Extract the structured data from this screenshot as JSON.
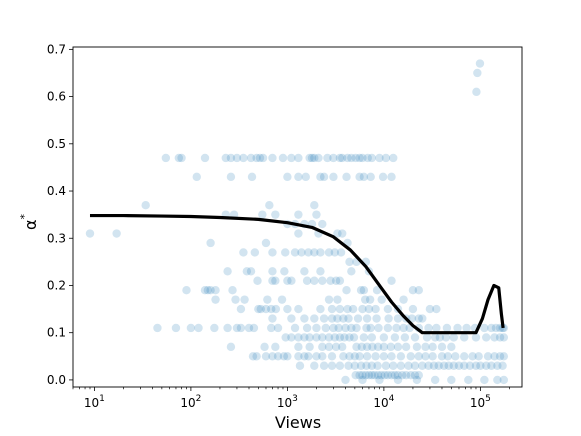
{
  "chart_data": {
    "type": "scatter",
    "xlabel": "Views",
    "ylabel": "α",
    "ylabel_superscript": "*",
    "x_scale": "log",
    "xlim": [
      6,
      270000
    ],
    "ylim": [
      -0.015,
      0.705
    ],
    "x_ticks": [
      {
        "value": 10,
        "base": "10",
        "exp": "1"
      },
      {
        "value": 100,
        "base": "10",
        "exp": "2"
      },
      {
        "value": 1000,
        "base": "10",
        "exp": "3"
      },
      {
        "value": 10000,
        "base": "10",
        "exp": "4"
      },
      {
        "value": 100000,
        "base": "10",
        "exp": "5"
      }
    ],
    "y_ticks": [
      {
        "value": 0.0,
        "label": "0.0"
      },
      {
        "value": 0.1,
        "label": "0.1"
      },
      {
        "value": 0.2,
        "label": "0.2"
      },
      {
        "value": 0.3,
        "label": "0.3"
      },
      {
        "value": 0.4,
        "label": "0.4"
      },
      {
        "value": 0.5,
        "label": "0.5"
      },
      {
        "value": 0.6,
        "label": "0.6"
      },
      {
        "value": 0.7,
        "label": "0.7"
      }
    ],
    "grid": false,
    "legend": "none",
    "colors": {
      "points": "#1f77b4",
      "line": "#000000"
    },
    "points_opacity": 0.2,
    "points": [
      [
        9,
        0.31
      ],
      [
        17,
        0.31
      ],
      [
        34,
        0.37
      ],
      [
        55,
        0.47
      ],
      [
        75,
        0.47
      ],
      [
        80,
        0.47
      ],
      [
        115,
        0.43
      ],
      [
        140,
        0.47
      ],
      [
        230,
        0.47
      ],
      [
        260,
        0.47
      ],
      [
        300,
        0.47
      ],
      [
        350,
        0.47
      ],
      [
        420,
        0.47
      ],
      [
        480,
        0.47
      ],
      [
        520,
        0.47
      ],
      [
        560,
        0.47
      ],
      [
        700,
        0.47
      ],
      [
        900,
        0.47
      ],
      [
        1100,
        0.47
      ],
      [
        1300,
        0.47
      ],
      [
        1700,
        0.47
      ],
      [
        1800,
        0.47
      ],
      [
        1900,
        0.47
      ],
      [
        2100,
        0.47
      ],
      [
        2600,
        0.47
      ],
      [
        3000,
        0.47
      ],
      [
        3500,
        0.47
      ],
      [
        3700,
        0.47
      ],
      [
        4200,
        0.47
      ],
      [
        4600,
        0.47
      ],
      [
        5100,
        0.47
      ],
      [
        5600,
        0.47
      ],
      [
        6000,
        0.47
      ],
      [
        6800,
        0.47
      ],
      [
        7500,
        0.47
      ],
      [
        9000,
        0.47
      ],
      [
        10500,
        0.47
      ],
      [
        12500,
        0.47
      ],
      [
        260,
        0.43
      ],
      [
        430,
        0.43
      ],
      [
        1000,
        0.43
      ],
      [
        1300,
        0.43
      ],
      [
        1550,
        0.43
      ],
      [
        2200,
        0.43
      ],
      [
        2400,
        0.43
      ],
      [
        3000,
        0.43
      ],
      [
        4100,
        0.43
      ],
      [
        5600,
        0.43
      ],
      [
        6200,
        0.43
      ],
      [
        7300,
        0.43
      ],
      [
        9800,
        0.43
      ],
      [
        12000,
        0.43
      ],
      [
        650,
        0.37
      ],
      [
        1900,
        0.37
      ],
      [
        230,
        0.35
      ],
      [
        280,
        0.35
      ],
      [
        550,
        0.35
      ],
      [
        750,
        0.35
      ],
      [
        1300,
        0.35
      ],
      [
        2000,
        0.35
      ],
      [
        1000,
        0.33
      ],
      [
        1200,
        0.33
      ],
      [
        1500,
        0.33
      ],
      [
        1800,
        0.33
      ],
      [
        2300,
        0.33
      ],
      [
        160,
        0.29
      ],
      [
        600,
        0.29
      ],
      [
        1300,
        0.31
      ],
      [
        2100,
        0.31
      ],
      [
        3300,
        0.31
      ],
      [
        3700,
        0.31
      ],
      [
        4200,
        0.29
      ],
      [
        350,
        0.27
      ],
      [
        460,
        0.27
      ],
      [
        700,
        0.27
      ],
      [
        950,
        0.27
      ],
      [
        1200,
        0.27
      ],
      [
        1400,
        0.27
      ],
      [
        1650,
        0.27
      ],
      [
        1900,
        0.27
      ],
      [
        2200,
        0.27
      ],
      [
        2700,
        0.27
      ],
      [
        3100,
        0.27
      ],
      [
        3600,
        0.27
      ],
      [
        4400,
        0.25
      ],
      [
        5200,
        0.25
      ],
      [
        6500,
        0.25
      ],
      [
        240,
        0.23
      ],
      [
        380,
        0.23
      ],
      [
        420,
        0.23
      ],
      [
        700,
        0.23
      ],
      [
        930,
        0.23
      ],
      [
        1500,
        0.23
      ],
      [
        2200,
        0.23
      ],
      [
        4600,
        0.23
      ],
      [
        7000,
        0.23
      ],
      [
        90,
        0.19
      ],
      [
        140,
        0.19
      ],
      [
        150,
        0.19
      ],
      [
        160,
        0.19
      ],
      [
        180,
        0.19
      ],
      [
        270,
        0.19
      ],
      [
        490,
        0.21
      ],
      [
        700,
        0.21
      ],
      [
        750,
        0.21
      ],
      [
        1000,
        0.21
      ],
      [
        1100,
        0.21
      ],
      [
        1600,
        0.21
      ],
      [
        1900,
        0.21
      ],
      [
        2300,
        0.21
      ],
      [
        2800,
        0.21
      ],
      [
        3200,
        0.21
      ],
      [
        3500,
        0.21
      ],
      [
        4100,
        0.19
      ],
      [
        5800,
        0.19
      ],
      [
        6200,
        0.19
      ],
      [
        8500,
        0.19
      ],
      [
        12000,
        0.21
      ],
      [
        20000,
        0.19
      ],
      [
        23000,
        0.19
      ],
      [
        180,
        0.17
      ],
      [
        290,
        0.17
      ],
      [
        360,
        0.17
      ],
      [
        620,
        0.17
      ],
      [
        880,
        0.17
      ],
      [
        2700,
        0.17
      ],
      [
        3300,
        0.17
      ],
      [
        6400,
        0.17
      ],
      [
        7200,
        0.17
      ],
      [
        9500,
        0.17
      ],
      [
        16000,
        0.17
      ],
      [
        330,
        0.15
      ],
      [
        500,
        0.15
      ],
      [
        530,
        0.15
      ],
      [
        600,
        0.15
      ],
      [
        680,
        0.15
      ],
      [
        760,
        0.15
      ],
      [
        1000,
        0.15
      ],
      [
        1300,
        0.15
      ],
      [
        2200,
        0.15
      ],
      [
        2900,
        0.15
      ],
      [
        3500,
        0.15
      ],
      [
        4200,
        0.15
      ],
      [
        4800,
        0.15
      ],
      [
        6000,
        0.15
      ],
      [
        7000,
        0.15
      ],
      [
        8200,
        0.15
      ],
      [
        11000,
        0.15
      ],
      [
        14000,
        0.15
      ],
      [
        20000,
        0.15
      ],
      [
        30000,
        0.15
      ],
      [
        35000,
        0.15
      ],
      [
        700,
        0.13
      ],
      [
        1100,
        0.13
      ],
      [
        1500,
        0.13
      ],
      [
        1900,
        0.13
      ],
      [
        2400,
        0.13
      ],
      [
        2900,
        0.13
      ],
      [
        3300,
        0.13
      ],
      [
        3800,
        0.13
      ],
      [
        4300,
        0.13
      ],
      [
        5400,
        0.13
      ],
      [
        6700,
        0.13
      ],
      [
        8400,
        0.13
      ],
      [
        11200,
        0.13
      ],
      [
        14000,
        0.13
      ],
      [
        17000,
        0.13
      ],
      [
        19500,
        0.13
      ],
      [
        23000,
        0.13
      ],
      [
        25000,
        0.13
      ],
      [
        45,
        0.11
      ],
      [
        70,
        0.11
      ],
      [
        100,
        0.11
      ],
      [
        120,
        0.11
      ],
      [
        175,
        0.11
      ],
      [
        240,
        0.11
      ],
      [
        300,
        0.11
      ],
      [
        330,
        0.11
      ],
      [
        400,
        0.11
      ],
      [
        450,
        0.11
      ],
      [
        680,
        0.11
      ],
      [
        800,
        0.11
      ],
      [
        1200,
        0.11
      ],
      [
        1600,
        0.11
      ],
      [
        2000,
        0.11
      ],
      [
        2500,
        0.11
      ],
      [
        3000,
        0.11
      ],
      [
        3400,
        0.11
      ],
      [
        4000,
        0.11
      ],
      [
        4600,
        0.11
      ],
      [
        5200,
        0.11
      ],
      [
        6600,
        0.11
      ],
      [
        7300,
        0.11
      ],
      [
        8800,
        0.11
      ],
      [
        11000,
        0.11
      ],
      [
        13500,
        0.11
      ],
      [
        16000,
        0.11
      ],
      [
        18500,
        0.11
      ],
      [
        23000,
        0.11
      ],
      [
        29000,
        0.11
      ],
      [
        35000,
        0.11
      ],
      [
        45000,
        0.11
      ],
      [
        58000,
        0.11
      ],
      [
        72000,
        0.11
      ],
      [
        88000,
        0.11
      ],
      [
        110000,
        0.11
      ],
      [
        130000,
        0.11
      ],
      [
        145000,
        0.11
      ],
      [
        160000,
        0.11
      ],
      [
        170000,
        0.11
      ],
      [
        175000,
        0.11
      ],
      [
        960,
        0.09
      ],
      [
        1100,
        0.09
      ],
      [
        1300,
        0.09
      ],
      [
        1500,
        0.09
      ],
      [
        1700,
        0.09
      ],
      [
        2000,
        0.09
      ],
      [
        2300,
        0.09
      ],
      [
        2700,
        0.09
      ],
      [
        3100,
        0.09
      ],
      [
        3500,
        0.09
      ],
      [
        3900,
        0.09
      ],
      [
        4400,
        0.09
      ],
      [
        4900,
        0.09
      ],
      [
        6200,
        0.09
      ],
      [
        7500,
        0.09
      ],
      [
        10000,
        0.09
      ],
      [
        13000,
        0.09
      ],
      [
        16500,
        0.09
      ],
      [
        21000,
        0.09
      ],
      [
        28000,
        0.09
      ],
      [
        34000,
        0.09
      ],
      [
        38000,
        0.09
      ],
      [
        44000,
        0.09
      ],
      [
        53000,
        0.09
      ],
      [
        68000,
        0.09
      ],
      [
        90000,
        0.09
      ],
      [
        115000,
        0.09
      ],
      [
        140000,
        0.09
      ],
      [
        160000,
        0.09
      ],
      [
        175000,
        0.09
      ],
      [
        260,
        0.07
      ],
      [
        580,
        0.07
      ],
      [
        750,
        0.07
      ],
      [
        1300,
        0.07
      ],
      [
        1700,
        0.07
      ],
      [
        2300,
        0.07
      ],
      [
        2700,
        0.07
      ],
      [
        3200,
        0.07
      ],
      [
        3700,
        0.07
      ],
      [
        5200,
        0.07
      ],
      [
        5900,
        0.07
      ],
      [
        6700,
        0.07
      ],
      [
        7600,
        0.07
      ],
      [
        8700,
        0.07
      ],
      [
        10000,
        0.07
      ],
      [
        11800,
        0.07
      ],
      [
        14000,
        0.07
      ],
      [
        17000,
        0.07
      ],
      [
        22000,
        0.07
      ],
      [
        27000,
        0.07
      ],
      [
        32000,
        0.07
      ],
      [
        40000,
        0.07
      ],
      [
        50000,
        0.07
      ],
      [
        440,
        0.05
      ],
      [
        480,
        0.05
      ],
      [
        600,
        0.05
      ],
      [
        700,
        0.05
      ],
      [
        800,
        0.05
      ],
      [
        920,
        0.05
      ],
      [
        1000,
        0.05
      ],
      [
        1300,
        0.05
      ],
      [
        1500,
        0.05
      ],
      [
        1650,
        0.05
      ],
      [
        2000,
        0.05
      ],
      [
        2300,
        0.05
      ],
      [
        2900,
        0.05
      ],
      [
        3800,
        0.05
      ],
      [
        4400,
        0.05
      ],
      [
        5000,
        0.05
      ],
      [
        5600,
        0.05
      ],
      [
        6700,
        0.05
      ],
      [
        8200,
        0.05
      ],
      [
        10000,
        0.05
      ],
      [
        12000,
        0.05
      ],
      [
        15000,
        0.05
      ],
      [
        19000,
        0.05
      ],
      [
        23000,
        0.05
      ],
      [
        27000,
        0.05
      ],
      [
        32000,
        0.05
      ],
      [
        40000,
        0.05
      ],
      [
        46000,
        0.05
      ],
      [
        55000,
        0.05
      ],
      [
        68000,
        0.05
      ],
      [
        83000,
        0.05
      ],
      [
        96000,
        0.05
      ],
      [
        120000,
        0.05
      ],
      [
        140000,
        0.05
      ],
      [
        160000,
        0.05
      ],
      [
        175000,
        0.05
      ],
      [
        1350,
        0.03
      ],
      [
        1900,
        0.03
      ],
      [
        2400,
        0.03
      ],
      [
        2900,
        0.03
      ],
      [
        3500,
        0.03
      ],
      [
        4300,
        0.03
      ],
      [
        5000,
        0.03
      ],
      [
        5800,
        0.03
      ],
      [
        6600,
        0.03
      ],
      [
        7500,
        0.03
      ],
      [
        8600,
        0.03
      ],
      [
        10500,
        0.03
      ],
      [
        12500,
        0.03
      ],
      [
        15000,
        0.03
      ],
      [
        18000,
        0.03
      ],
      [
        21000,
        0.03
      ],
      [
        25000,
        0.03
      ],
      [
        29000,
        0.03
      ],
      [
        33000,
        0.03
      ],
      [
        37000,
        0.03
      ],
      [
        42000,
        0.03
      ],
      [
        47000,
        0.03
      ],
      [
        53000,
        0.03
      ],
      [
        60000,
        0.03
      ],
      [
        68000,
        0.03
      ],
      [
        78000,
        0.03
      ],
      [
        90000,
        0.03
      ],
      [
        100000,
        0.03
      ],
      [
        115000,
        0.03
      ],
      [
        130000,
        0.03
      ],
      [
        150000,
        0.03
      ],
      [
        170000,
        0.03
      ],
      [
        5100,
        0.01
      ],
      [
        5600,
        0.01
      ],
      [
        6000,
        0.01
      ],
      [
        6500,
        0.01
      ],
      [
        7000,
        0.01
      ],
      [
        7500,
        0.01
      ],
      [
        8000,
        0.01
      ],
      [
        8700,
        0.01
      ],
      [
        9400,
        0.01
      ],
      [
        10200,
        0.01
      ],
      [
        11000,
        0.01
      ],
      [
        12000,
        0.01
      ],
      [
        13000,
        0.01
      ],
      [
        14000,
        0.01
      ],
      [
        15500,
        0.01
      ],
      [
        17000,
        0.01
      ],
      [
        19000,
        0.01
      ],
      [
        21000,
        0.01
      ],
      [
        23000,
        0.01
      ],
      [
        4000,
        0.0
      ],
      [
        6000,
        0.0
      ],
      [
        9000,
        0.0
      ],
      [
        14000,
        0.0
      ],
      [
        22000,
        0.0
      ],
      [
        34000,
        0.0
      ],
      [
        50000,
        0.0
      ],
      [
        75000,
        0.0
      ],
      [
        110000,
        0.0
      ],
      [
        150000,
        0.0
      ],
      [
        175000,
        0.0
      ],
      [
        91000,
        0.61
      ],
      [
        93000,
        0.65
      ],
      [
        99000,
        0.67
      ]
    ],
    "line": [
      [
        9,
        0.348
      ],
      [
        20,
        0.348
      ],
      [
        50,
        0.347
      ],
      [
        100,
        0.346
      ],
      [
        200,
        0.344
      ],
      [
        500,
        0.34
      ],
      [
        1000,
        0.333
      ],
      [
        1800,
        0.323
      ],
      [
        3000,
        0.303
      ],
      [
        4500,
        0.275
      ],
      [
        6500,
        0.24
      ],
      [
        9000,
        0.2
      ],
      [
        12000,
        0.165
      ],
      [
        16000,
        0.135
      ],
      [
        20000,
        0.115
      ],
      [
        25000,
        0.1
      ],
      [
        45000,
        0.1
      ],
      [
        65000,
        0.1
      ],
      [
        90000,
        0.1
      ],
      [
        105000,
        0.13
      ],
      [
        120000,
        0.17
      ],
      [
        138000,
        0.2
      ],
      [
        155000,
        0.195
      ],
      [
        165000,
        0.14
      ],
      [
        172000,
        0.11
      ]
    ]
  }
}
